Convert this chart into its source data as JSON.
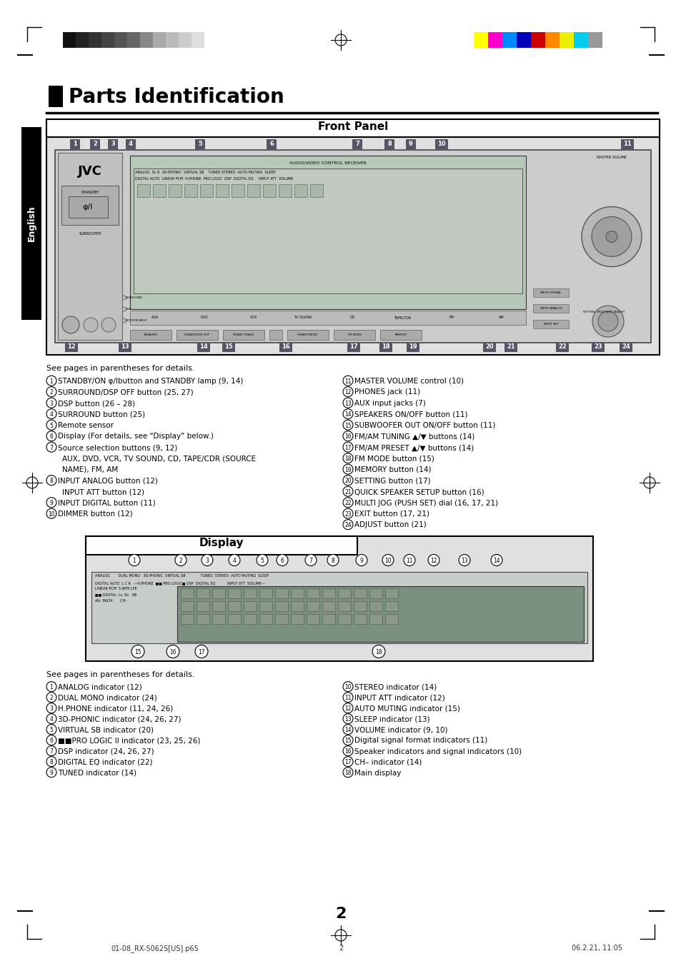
{
  "title": "Parts Identification",
  "bg_color": "#ffffff",
  "front_panel_title": "Front Panel",
  "display_title": "Display",
  "page_number": "2",
  "header_bar_colors_left": [
    "#111111",
    "#222222",
    "#333333",
    "#444444",
    "#555555",
    "#666666",
    "#888888",
    "#aaaaaa",
    "#bbbbbb",
    "#cccccc",
    "#dddddd"
  ],
  "header_bar_colors_right": [
    "#ffff00",
    "#ff00cc",
    "#0088ff",
    "#0000bb",
    "#cc0000",
    "#ff8800",
    "#eeee00",
    "#00ccee",
    "#999999"
  ],
  "see_pages_text": "See pages in parentheses for details.",
  "fp_items_left": [
    [
      "1",
      "STANDBY/ON φ/Ibutton and STANDBY lamp (9, 14)"
    ],
    [
      "2",
      "SURROUND/DSP OFF button (25, 27)"
    ],
    [
      "3",
      "DSP button (26 – 28)"
    ],
    [
      "4",
      "SURROUND button (25)"
    ],
    [
      "5",
      "Remote sensor"
    ],
    [
      "6",
      "Display (For details, see “Display” below.)"
    ],
    [
      "7",
      "Source selection buttons (9, 12)"
    ],
    [
      "",
      "AUX, DVD, VCR, TV SOUND, CD, TAPE/CDR (SOURCE"
    ],
    [
      "",
      "NAME), FM, AM"
    ],
    [
      "8",
      "INPUT ANALOG button (12)"
    ],
    [
      "",
      "INPUT ATT button (12)"
    ],
    [
      "9",
      "INPUT DIGITAL button (11)"
    ],
    [
      "10",
      "DIMMER button (12)"
    ]
  ],
  "fp_items_right": [
    [
      "11",
      "MASTER VOLUME control (10)"
    ],
    [
      "12",
      "PHONES jack (11)"
    ],
    [
      "13",
      "AUX input jacks (7)"
    ],
    [
      "14",
      "SPEAKERS ON/OFF button (11)"
    ],
    [
      "15",
      "SUBWOOFER OUT ON/OFF button (11)"
    ],
    [
      "16",
      "FM/AM TUNING ▲/▼ buttons (14)"
    ],
    [
      "17",
      "FM/AM PRESET ▲/▼ buttons (14)"
    ],
    [
      "18",
      "FM MODE button (15)"
    ],
    [
      "19",
      "MEMORY button (14)"
    ],
    [
      "20",
      "SETTING button (17)"
    ],
    [
      "21",
      "QUICK SPEAKER SETUP button (16)"
    ],
    [
      "22",
      "MULTI JOG (PUSH SET) dial (16, 17, 21)"
    ],
    [
      "23",
      "EXIT button (17, 21)"
    ],
    [
      "24",
      "ADJUST button (21)"
    ]
  ],
  "disp_items_left": [
    [
      "1",
      "ANALOG indicator (12)"
    ],
    [
      "2",
      "DUAL MONO indicator (24)"
    ],
    [
      "3",
      "H.PHONE indicator (11, 24, 26)"
    ],
    [
      "4",
      "3D-PHONIC indicator (24, 26, 27)"
    ],
    [
      "5",
      "VIRTUAL SB indicator (20)"
    ],
    [
      "6",
      "■■PRO LOGIC II indicator (23, 25, 26)"
    ],
    [
      "7",
      "DSP indicator (24, 26, 27)"
    ],
    [
      "8",
      "DIGITAL EQ indicator (22)"
    ],
    [
      "9",
      "TUNED indicator (14)"
    ]
  ],
  "disp_items_right": [
    [
      "10",
      "STEREO indicator (14)"
    ],
    [
      "11",
      "INPUT ATT indicator (12)"
    ],
    [
      "12",
      "AUTO MUTING indicator (15)"
    ],
    [
      "13",
      "SLEEP indicator (13)"
    ],
    [
      "14",
      "VOLUME indicator (9, 10)"
    ],
    [
      "15",
      "Digital signal format indicators (11)"
    ],
    [
      "16",
      "Speaker indicators and signal indicators (10)"
    ],
    [
      "17",
      "CH– indicator (14)"
    ],
    [
      "18",
      "Main display"
    ]
  ],
  "footer_left": "01-08_RX-5062S[US].p65",
  "footer_center": "2",
  "footer_right": "06.2.21, 11:05"
}
